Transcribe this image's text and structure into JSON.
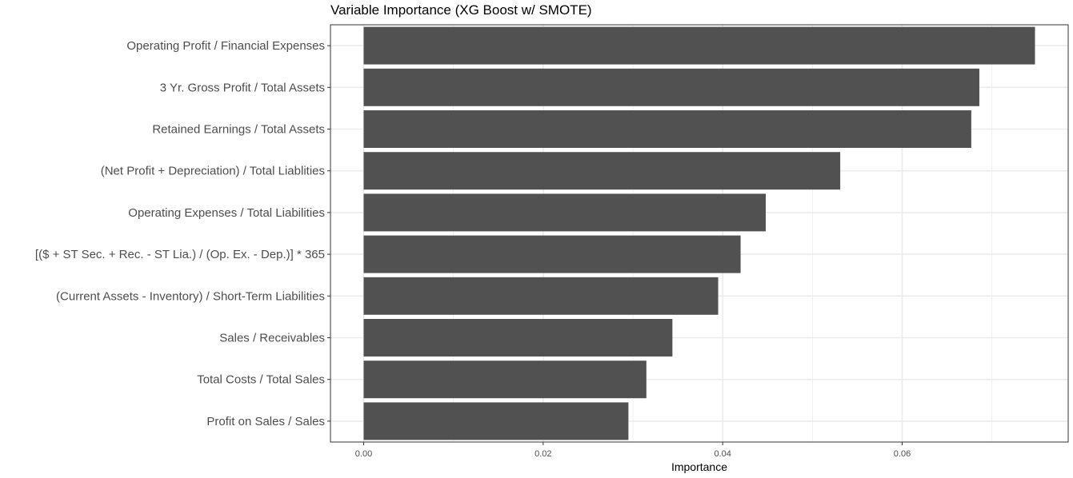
{
  "chart_data": {
    "type": "bar",
    "orientation": "horizontal",
    "title": "Variable Importance (XG Boost w/ SMOTE)",
    "xlabel": "Importance",
    "ylabel": "",
    "categories": [
      "Operating Profit / Financial Expenses",
      "3 Yr. Gross Profit / Total Assets",
      "Retained Earnings / Total Assets",
      "(Net Profit + Depreciation) / Total Liablities",
      "Operating Expenses / Total Liabilities",
      "[($ + ST Sec. + Rec. - ST Lia.) / (Op. Ex. - Dep.)] * 365",
      "(Current Assets - Inventory) / Short-Term Liabilities",
      "Sales / Receivables",
      "Total Costs / Total Sales",
      "Profit on Sales / Sales"
    ],
    "values": [
      0.0748,
      0.0686,
      0.0677,
      0.0531,
      0.0448,
      0.042,
      0.0395,
      0.0344,
      0.0315,
      0.0295
    ],
    "xlim": [
      -0.0037,
      0.0785
    ],
    "xticks": [
      0,
      0.02,
      0.04,
      0.06
    ],
    "xtick_labels": [
      "0.00",
      "0.02",
      "0.04",
      "0.06"
    ],
    "grid": true,
    "bar_color": "#515151",
    "grid_color": "#ebebeb",
    "panel_border_color": "#333333"
  }
}
